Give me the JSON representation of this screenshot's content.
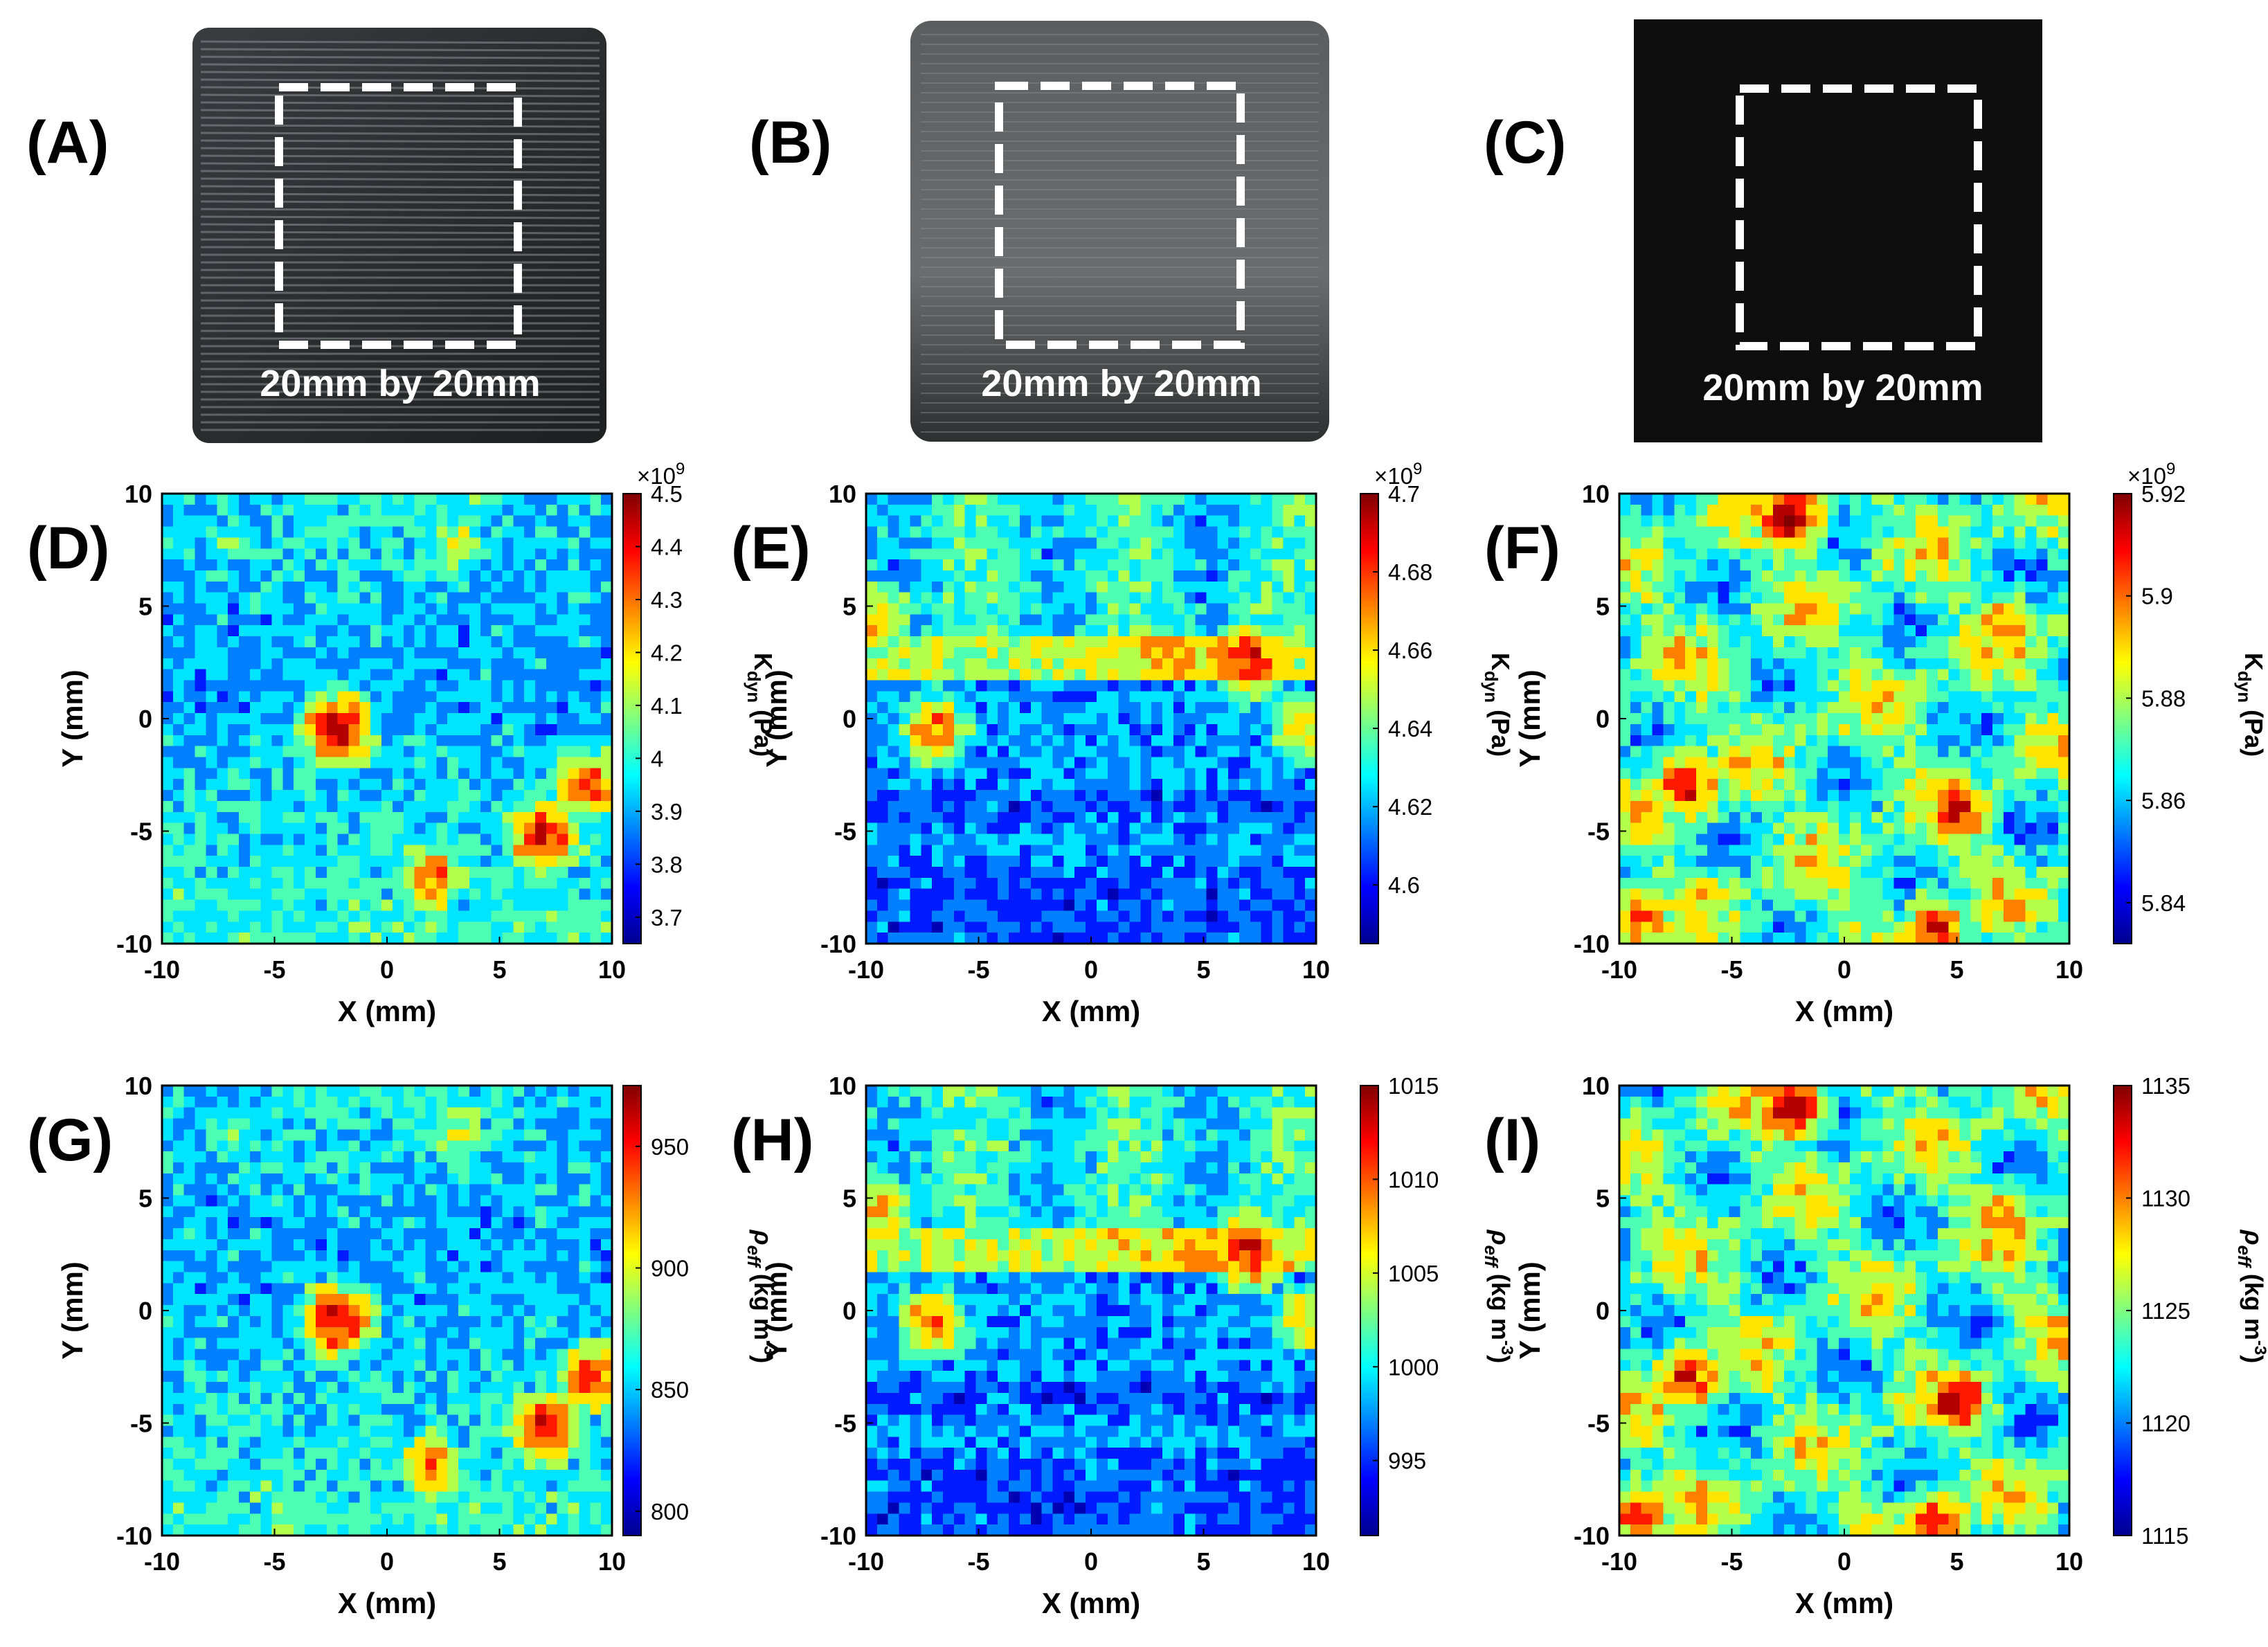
{
  "figure": {
    "photos": [
      {
        "id": "A",
        "label": "(A)",
        "caption": "20mm by 20mm"
      },
      {
        "id": "B",
        "label": "(B)",
        "caption": "20mm by 20mm"
      },
      {
        "id": "C",
        "label": "(C)",
        "caption": "20mm by 20mm"
      }
    ]
  },
  "chart_data": [
    {
      "id": "D",
      "panel_label": "(D)",
      "type": "heatmap",
      "title": "",
      "xlabel": "X (mm)",
      "ylabel": "Y (mm)",
      "xlim": [
        -10,
        10
      ],
      "ylim": [
        -10,
        10
      ],
      "x_ticks": [
        "-10",
        "-5",
        "0",
        "5",
        "10"
      ],
      "y_ticks": [
        "-10",
        "-5",
        "0",
        "5",
        "10"
      ],
      "colorbar": {
        "label_main": "K",
        "label_sub": "dyn",
        "label_unit": " (Pa)",
        "exponent_text": "×10",
        "exponent_power": "9",
        "range": [
          3.65,
          4.5
        ],
        "ticks": [
          "3.7",
          "3.8",
          "3.9",
          "4",
          "4.1",
          "4.2",
          "4.3",
          "4.4",
          "4.5"
        ],
        "tick_values": [
          3.7,
          3.8,
          3.9,
          4.0,
          4.1,
          4.2,
          4.3,
          4.4,
          4.5
        ]
      },
      "hotspots": [
        {
          "x": 7,
          "y": -5.2,
          "level": 0.9
        },
        {
          "x": 2,
          "y": -7,
          "level": 0.75
        },
        {
          "x": -2.2,
          "y": -0.5,
          "level": 0.95
        },
        {
          "x": 3,
          "y": 8,
          "level": 0.55
        },
        {
          "x": -7,
          "y": 8,
          "level": 0.45
        },
        {
          "x": 9,
          "y": -3,
          "level": 0.8
        }
      ]
    },
    {
      "id": "E",
      "panel_label": "(E)",
      "type": "heatmap",
      "title": "",
      "xlabel": "X (mm)",
      "ylabel": "Y (mm)",
      "xlim": [
        -10,
        10
      ],
      "ylim": [
        -10,
        10
      ],
      "x_ticks": [
        "-10",
        "-5",
        "0",
        "5",
        "10"
      ],
      "y_ticks": [
        "-10",
        "-5",
        "0",
        "5",
        "10"
      ],
      "colorbar": {
        "label_main": "K",
        "label_sub": "dyn",
        "label_unit": " (Pa)",
        "exponent_text": "×10",
        "exponent_power": "9",
        "range": [
          4.585,
          4.7
        ],
        "ticks": [
          "4.6",
          "4.62",
          "4.64",
          "4.66",
          "4.68",
          "4.7"
        ],
        "tick_values": [
          4.6,
          4.62,
          4.64,
          4.66,
          4.68,
          4.7
        ]
      },
      "hotspots": [
        {
          "x": 7,
          "y": 2.6,
          "level": 0.9
        },
        {
          "x": -7,
          "y": -0.5,
          "level": 0.75
        },
        {
          "x": -9.5,
          "y": 4.5,
          "level": 0.7
        },
        {
          "x": 9.5,
          "y": -0.5,
          "level": 0.65
        }
      ]
    },
    {
      "id": "F",
      "panel_label": "(F)",
      "type": "heatmap",
      "title": "",
      "xlabel": "X (mm)",
      "ylabel": "Y (mm)",
      "xlim": [
        -10,
        10
      ],
      "ylim": [
        -10,
        10
      ],
      "x_ticks": [
        "-10",
        "-5",
        "0",
        "5",
        "10"
      ],
      "y_ticks": [
        "-10",
        "-5",
        "0",
        "5",
        "10"
      ],
      "colorbar": {
        "label_main": "K",
        "label_sub": "dyn",
        "label_unit": " (Pa)",
        "exponent_text": "×10",
        "exponent_power": "9",
        "range": [
          5.832,
          5.92
        ],
        "ticks": [
          "5.84",
          "5.86",
          "5.88",
          "5.9",
          "5.92"
        ],
        "tick_values": [
          5.84,
          5.86,
          5.88,
          5.9,
          5.92
        ]
      },
      "hotspots": [
        {
          "x": -2.5,
          "y": 9,
          "level": 0.95
        },
        {
          "x": -7,
          "y": -3,
          "level": 0.85
        },
        {
          "x": 5,
          "y": -4,
          "level": 0.9
        },
        {
          "x": 7,
          "y": 4,
          "level": 0.8
        },
        {
          "x": 4,
          "y": -9.5,
          "level": 0.85
        },
        {
          "x": -9,
          "y": -9,
          "level": 0.8
        }
      ]
    },
    {
      "id": "G",
      "panel_label": "(G)",
      "type": "heatmap",
      "title": "",
      "xlabel": "X (mm)",
      "ylabel": "Y (mm)",
      "xlim": [
        -10,
        10
      ],
      "ylim": [
        -10,
        10
      ],
      "x_ticks": [
        "-10",
        "-5",
        "0",
        "5",
        "10"
      ],
      "y_ticks": [
        "-10",
        "-5",
        "0",
        "5",
        "10"
      ],
      "colorbar": {
        "label_main": "ρ",
        "label_sub": "eff",
        "label_unit": " (kg m",
        "label_exp": "-3",
        "label_close": ")",
        "range": [
          790,
          975
        ],
        "ticks": [
          "800",
          "850",
          "900",
          "950"
        ],
        "tick_values": [
          800,
          850,
          900,
          950
        ]
      },
      "hotspots": [
        {
          "x": 7,
          "y": -5.2,
          "level": 0.9
        },
        {
          "x": 2,
          "y": -7,
          "level": 0.75
        },
        {
          "x": -2.2,
          "y": -0.5,
          "level": 0.95
        },
        {
          "x": 3,
          "y": 8,
          "level": 0.55
        },
        {
          "x": -7,
          "y": 8,
          "level": 0.45
        },
        {
          "x": 9,
          "y": -3,
          "level": 0.8
        }
      ]
    },
    {
      "id": "H",
      "panel_label": "(H)",
      "type": "heatmap",
      "title": "",
      "xlabel": "X (mm)",
      "ylabel": "Y (mm)",
      "xlim": [
        -10,
        10
      ],
      "ylim": [
        -10,
        10
      ],
      "x_ticks": [
        "-10",
        "-5",
        "0",
        "5",
        "10"
      ],
      "y_ticks": [
        "-10",
        "-5",
        "0",
        "5",
        "10"
      ],
      "colorbar": {
        "label_main": "ρ",
        "label_sub": "eff",
        "label_unit": " (kg m",
        "label_exp": "-3",
        "label_close": ")",
        "range": [
          991,
          1015
        ],
        "ticks": [
          "995",
          "1000",
          "1005",
          "1010",
          "1015"
        ],
        "tick_values": [
          995,
          1000,
          1005,
          1010,
          1015
        ]
      },
      "hotspots": [
        {
          "x": 7,
          "y": 2.6,
          "level": 0.9
        },
        {
          "x": -7,
          "y": -0.5,
          "level": 0.75
        },
        {
          "x": -9.5,
          "y": 4.5,
          "level": 0.7
        },
        {
          "x": 9.5,
          "y": -0.5,
          "level": 0.65
        }
      ]
    },
    {
      "id": "I",
      "panel_label": "(I)",
      "type": "heatmap",
      "title": "",
      "xlabel": "X (mm)",
      "ylabel": "Y (mm)",
      "xlim": [
        -10,
        10
      ],
      "ylim": [
        -10,
        10
      ],
      "x_ticks": [
        "-10",
        "-5",
        "0",
        "5",
        "10"
      ],
      "y_ticks": [
        "-10",
        "-5",
        "0",
        "5",
        "10"
      ],
      "colorbar": {
        "label_main": "ρ",
        "label_sub": "eff",
        "label_unit": " (kg m",
        "label_exp": "-3",
        "label_close": ")",
        "range": [
          1115,
          1135
        ],
        "ticks": [
          "1115",
          "1120",
          "1125",
          "1130",
          "1135"
        ],
        "tick_values": [
          1115,
          1120,
          1125,
          1130,
          1135
        ]
      },
      "hotspots": [
        {
          "x": -2.5,
          "y": 9,
          "level": 0.95
        },
        {
          "x": -7,
          "y": -3,
          "level": 0.85
        },
        {
          "x": 5,
          "y": -4,
          "level": 0.9
        },
        {
          "x": 7,
          "y": 4,
          "level": 0.8
        },
        {
          "x": 4,
          "y": -9.5,
          "level": 0.85
        },
        {
          "x": -9,
          "y": -9,
          "level": 0.8
        }
      ]
    }
  ]
}
